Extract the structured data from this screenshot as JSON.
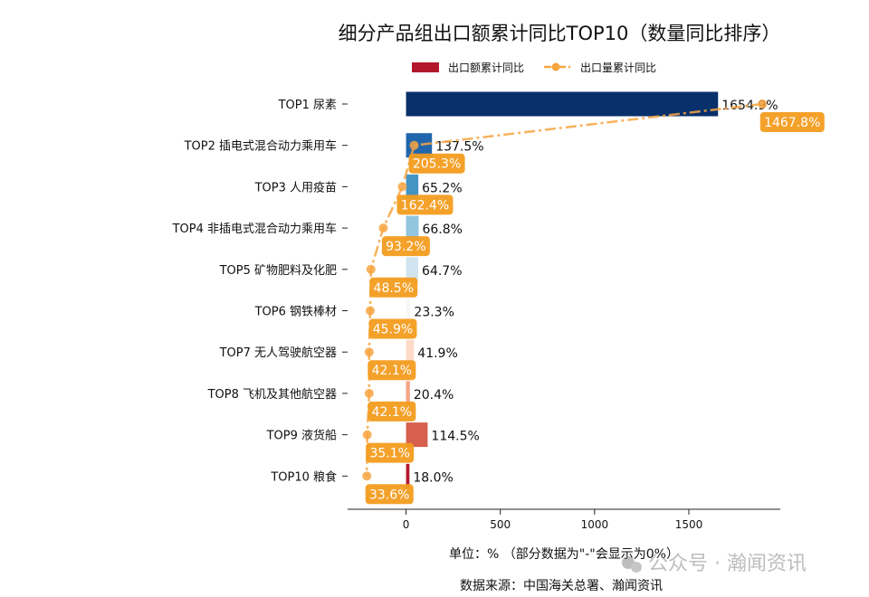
{
  "chart_data": {
    "type": "bar",
    "orientation": "horizontal",
    "title": "细分产品组出口额累计同比TOP10（数量同比排序）",
    "categories": [
      "TOP1 尿素",
      "TOP2 插电式混合动力乘用车",
      "TOP3 人用疫苗",
      "TOP4 非插电式混合动力乘用车",
      "TOP5 矿物肥料及化肥",
      "TOP6 钢铁棒材",
      "TOP7 无人驾驶航空器",
      "TOP8 飞机及其他航空器",
      "TOP9 液货船",
      "TOP10 粮食"
    ],
    "series": [
      {
        "name": "出口额累计同比",
        "type": "bar",
        "values": [
          1654.9,
          137.5,
          65.2,
          66.8,
          64.7,
          23.3,
          41.9,
          20.4,
          114.5,
          18.0
        ],
        "labels": [
          "1654.9%",
          "137.5%",
          "65.2%",
          "66.8%",
          "64.7%",
          "23.3%",
          "41.9%",
          "20.4%",
          "114.5%",
          "18.0%"
        ],
        "colors": [
          "#08306b",
          "#2166ac",
          "#4393c3",
          "#92c5de",
          "#d1e5f0",
          "#f7f7f7",
          "#fddbc7",
          "#f4a582",
          "#d6604d",
          "#b2182b"
        ]
      },
      {
        "name": "出口量累计同比",
        "type": "line",
        "values": [
          1467.8,
          205.3,
          162.4,
          93.2,
          48.5,
          45.9,
          42.1,
          42.1,
          35.1,
          33.6
        ],
        "labels": [
          "1467.8%",
          "205.3%",
          "162.4%",
          "93.2%",
          "48.5%",
          "45.9%",
          "42.1%",
          "42.1%",
          "35.1%",
          "33.6%"
        ],
        "color": "#f7a541",
        "label_bg": "#f39c1f"
      }
    ],
    "xticks": [
      "0",
      "500",
      "1000",
      "1500"
    ],
    "xtick_values": [
      0,
      500,
      1000,
      1500
    ],
    "xlim": [
      -310,
      1985
    ],
    "legend_placement": "top-center",
    "legend_bar_color": "#b2182b",
    "xlabel": "单位：%  （部分数据为\"-\"会显示为0%）",
    "source": "数据来源：中国海关总署、瀚闻资讯",
    "grid": false
  },
  "watermark": "公众号 · 瀚闻资讯"
}
